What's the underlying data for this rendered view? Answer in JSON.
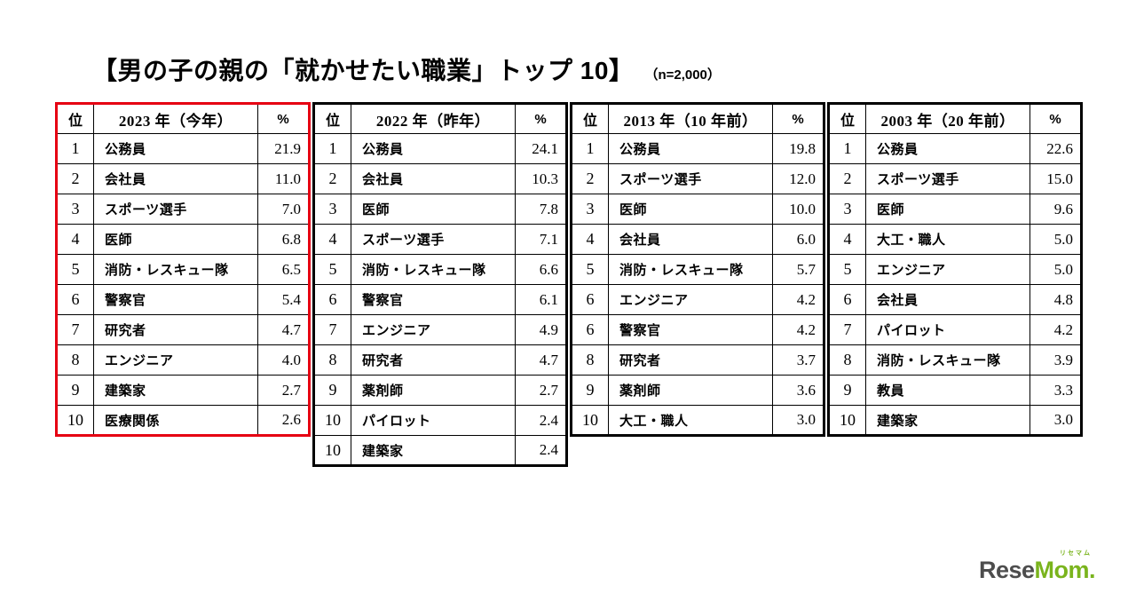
{
  "title": "【男の子の親の「就かせたい職業」トップ 10】",
  "sample_note": "（n=2,000）",
  "highlight_color": "#e60012",
  "chart_data": [
    {
      "type": "table",
      "title": "2023 年（今年）",
      "highlighted": true,
      "columns": [
        "位",
        "2023 年（今年）",
        "%"
      ],
      "rows": [
        [
          "1",
          "公務員",
          "21.9"
        ],
        [
          "2",
          "会社員",
          "11.0"
        ],
        [
          "3",
          "スポーツ選手",
          "7.0"
        ],
        [
          "4",
          "医師",
          "6.8"
        ],
        [
          "5",
          "消防・レスキュー隊",
          "6.5"
        ],
        [
          "6",
          "警察官",
          "5.4"
        ],
        [
          "7",
          "研究者",
          "4.7"
        ],
        [
          "8",
          "エンジニア",
          "4.0"
        ],
        [
          "9",
          "建築家",
          "2.7"
        ],
        [
          "10",
          "医療関係",
          "2.6"
        ]
      ]
    },
    {
      "type": "table",
      "title": "2022 年（昨年）",
      "highlighted": false,
      "columns": [
        "位",
        "2022 年（昨年）",
        "%"
      ],
      "rows": [
        [
          "1",
          "公務員",
          "24.1"
        ],
        [
          "2",
          "会社員",
          "10.3"
        ],
        [
          "3",
          "医師",
          "7.8"
        ],
        [
          "4",
          "スポーツ選手",
          "7.1"
        ],
        [
          "5",
          "消防・レスキュー隊",
          "6.6"
        ],
        [
          "6",
          "警察官",
          "6.1"
        ],
        [
          "7",
          "エンジニア",
          "4.9"
        ],
        [
          "8",
          "研究者",
          "4.7"
        ],
        [
          "9",
          "薬剤師",
          "2.7"
        ],
        [
          "10",
          "パイロット",
          "2.4"
        ],
        [
          "10",
          "建築家",
          "2.4"
        ]
      ]
    },
    {
      "type": "table",
      "title": "2013 年（10 年前）",
      "highlighted": false,
      "columns": [
        "位",
        "2013 年（10 年前）",
        "%"
      ],
      "rows": [
        [
          "1",
          "公務員",
          "19.8"
        ],
        [
          "2",
          "スポーツ選手",
          "12.0"
        ],
        [
          "3",
          "医師",
          "10.0"
        ],
        [
          "4",
          "会社員",
          "6.0"
        ],
        [
          "5",
          "消防・レスキュー隊",
          "5.7"
        ],
        [
          "6",
          "エンジニア",
          "4.2"
        ],
        [
          "6",
          "警察官",
          "4.2"
        ],
        [
          "8",
          "研究者",
          "3.7"
        ],
        [
          "9",
          "薬剤師",
          "3.6"
        ],
        [
          "10",
          "大工・職人",
          "3.0"
        ]
      ]
    },
    {
      "type": "table",
      "title": "2003 年（20 年前）",
      "highlighted": false,
      "columns": [
        "位",
        "2003 年（20 年前）",
        "%"
      ],
      "rows": [
        [
          "1",
          "公務員",
          "22.6"
        ],
        [
          "2",
          "スポーツ選手",
          "15.0"
        ],
        [
          "3",
          "医師",
          "9.6"
        ],
        [
          "4",
          "大工・職人",
          "5.0"
        ],
        [
          "5",
          "エンジニア",
          "5.0"
        ],
        [
          "6",
          "会社員",
          "4.8"
        ],
        [
          "7",
          "パイロット",
          "4.2"
        ],
        [
          "8",
          "消防・レスキュー隊",
          "3.9"
        ],
        [
          "9",
          "教員",
          "3.3"
        ],
        [
          "10",
          "建築家",
          "3.0"
        ]
      ]
    }
  ],
  "logo": {
    "gray": "Rese",
    "green": "Mom.",
    "ruby": "リセマム"
  }
}
